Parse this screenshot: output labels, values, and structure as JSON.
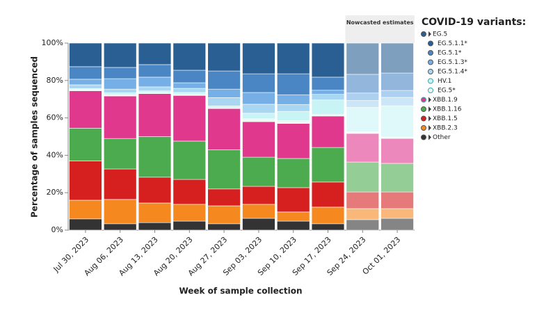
{
  "chart_data": {
    "type": "stacked_bar",
    "x_label": "Week of sample collection",
    "y_label": "Percentage of samples sequenced",
    "categories": [
      "Jul 30, 2023",
      "Aug 06, 2023",
      "Aug 13, 2023",
      "Aug 20, 2023",
      "Aug 27, 2023",
      "Sep 03, 2023",
      "Sep 10, 2023",
      "Sep 17, 2023",
      "Sep 24, 2023",
      "Oct 01, 2023"
    ],
    "ylim": [
      0,
      100
    ],
    "yticks": [
      {
        "value": 0,
        "label": "0%"
      },
      {
        "value": 20,
        "label": "20%"
      },
      {
        "value": 40,
        "label": "40%"
      },
      {
        "value": 60,
        "label": "60%"
      },
      {
        "value": 80,
        "label": "80%"
      },
      {
        "value": 100,
        "label": "100%"
      }
    ],
    "nowcast_annotation": "Nowcasted estimates",
    "nowcasted_last": 2,
    "legend_title": "COVID-19 variants:",
    "legend_header": {
      "label": "EG.5",
      "color": "#2a5f93",
      "children": 6
    },
    "series": [
      {
        "name": "EG.5.1.1*",
        "color": "#2a5f93",
        "values": [
          12.6,
          13,
          11.5,
          14.5,
          14.9,
          16.4,
          16.4,
          18.2,
          16.7,
          16
        ]
      },
      {
        "name": "EG.5.1*",
        "color": "#4a86c4",
        "values": [
          6.7,
          6,
          6.7,
          6.7,
          9.7,
          10,
          11.2,
          7,
          10,
          9.3
        ]
      },
      {
        "name": "EG.5.1.3*",
        "color": "#76afe6",
        "values": [
          3,
          5.6,
          5.2,
          3,
          4.5,
          6.3,
          5.2,
          2.2,
          4,
          3.7
        ]
      },
      {
        "name": "EG.5.1.4*",
        "color": "#a9d7f2",
        "values": [
          2,
          2,
          2.2,
          2.2,
          4.5,
          4.8,
          3.7,
          3,
          3.7,
          4.5
        ]
      },
      {
        "name": "HV.1",
        "color": "#c9f4f6",
        "values": [
          0.5,
          1,
          0.9,
          1,
          1,
          3,
          5,
          7.8,
          13,
          16.7
        ]
      },
      {
        "name": "EG.5*",
        "color": "#eef8ef",
        "values": [
          0.7,
          0.7,
          0.5,
          0.6,
          0.4,
          1.5,
          1.5,
          0.8,
          0.9,
          0.8
        ]
      },
      {
        "name": "XBB.1.9",
        "color": "#e0388d",
        "values": [
          20,
          22.7,
          23,
          24.4,
          22,
          19,
          18.7,
          16.8,
          15.3,
          13.3
        ]
      },
      {
        "name": "XBB.1.16",
        "color": "#4dab4f",
        "values": [
          17.5,
          16.3,
          21.7,
          20.5,
          21,
          15.6,
          15.6,
          18.5,
          16,
          15.3
        ]
      },
      {
        "name": "XBB.1.5",
        "color": "#d62020",
        "values": [
          21,
          16.3,
          13.8,
          13.3,
          9,
          9.6,
          13,
          13.4,
          8.9,
          8.9
        ]
      },
      {
        "name": "XBB.2.3",
        "color": "#f5881f",
        "values": [
          10,
          13,
          10.5,
          9,
          9.6,
          7.5,
          4.9,
          8.9,
          5.9,
          5.2
        ]
      },
      {
        "name": "Other",
        "color": "#333333",
        "values": [
          6,
          3.4,
          4,
          4.8,
          3.4,
          6.3,
          4.8,
          3.4,
          5.6,
          6.3
        ]
      }
    ]
  }
}
